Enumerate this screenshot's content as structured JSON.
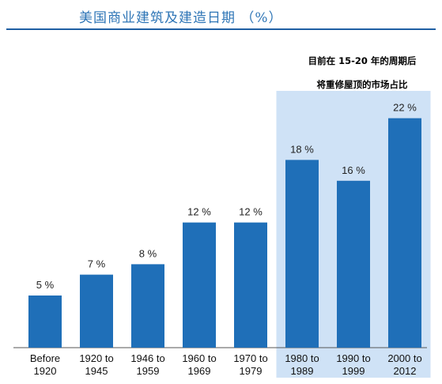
{
  "header": {
    "title": "美国商业建筑及建造日期  （%）"
  },
  "annotation": {
    "line1": "目前在 15-20 年的周期后",
    "line2": "将重修屋顶的市场占比"
  },
  "colors": {
    "bar": "#1f6fb8",
    "highlight": "#cfe2f6",
    "title": "#2e75b6",
    "rule": "#1f5fa3",
    "axis": "#555555"
  },
  "chart_data": {
    "type": "bar",
    "title": "美国商业建筑及建造日期  （%）",
    "xlabel": "",
    "ylabel": "",
    "ylim": [
      0,
      25
    ],
    "grid": false,
    "categories": [
      [
        "Before",
        "1920"
      ],
      [
        "1920 to",
        "1945"
      ],
      [
        "1946 to",
        "1959"
      ],
      [
        "1960 to",
        "1969"
      ],
      [
        "1970 to",
        "1979"
      ],
      [
        "1980 to",
        "1989"
      ],
      [
        "1990 to",
        "1999"
      ],
      [
        "2000 to",
        "2012"
      ]
    ],
    "values": [
      5,
      7,
      8,
      12,
      12,
      18,
      16,
      22
    ],
    "value_labels": [
      "5 %",
      "7 %",
      "8 %",
      "12 %",
      "12 %",
      "18 %",
      "16 %",
      "22 %"
    ],
    "highlighted_categories": [
      5,
      6,
      7
    ]
  }
}
